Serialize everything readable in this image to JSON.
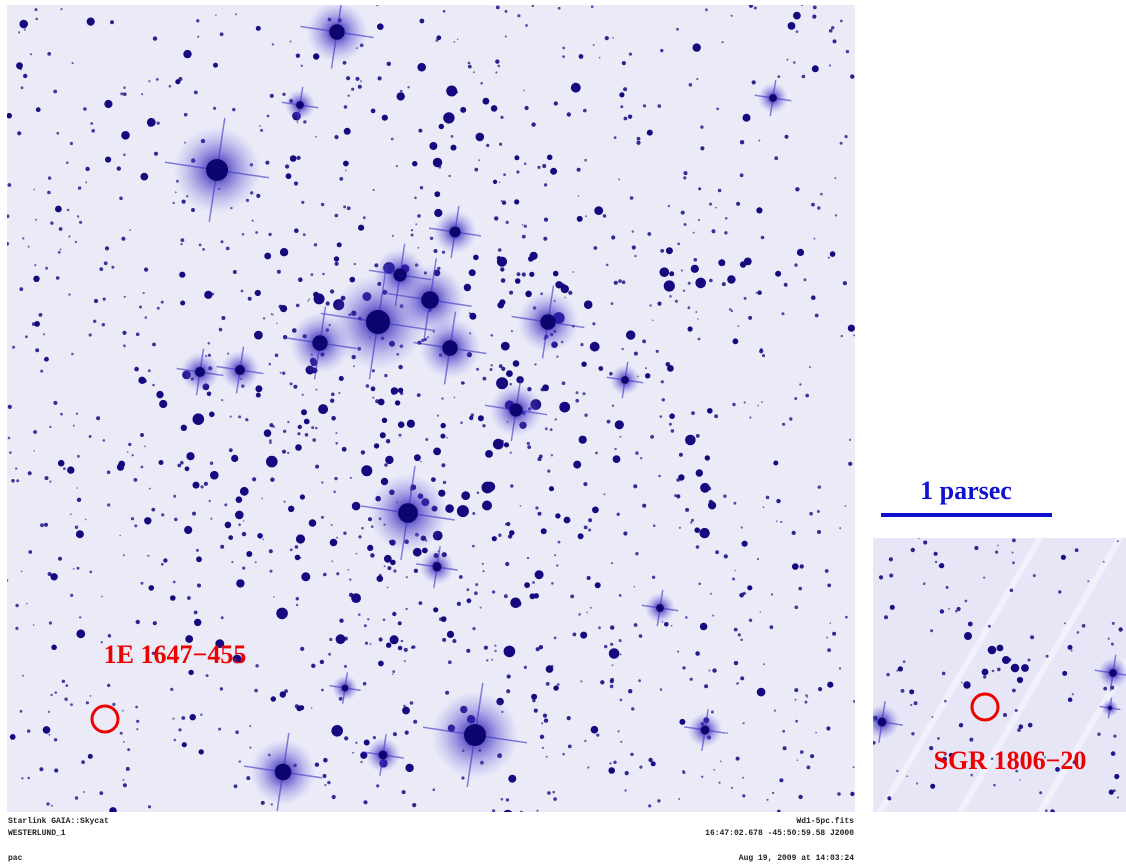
{
  "annotations": {
    "main_source": "1E 1647−455",
    "compare_source": "SGR 1806−20",
    "scale_bar": "1 parsec"
  },
  "footer": {
    "software": "Starlink GAIA::Skycat",
    "object": "WESTERLUND_1",
    "file": "Wd1-5pc.fits",
    "coords": "16:47:02.678 -45:50:59.58 J2000",
    "user": "pac",
    "date": "Aug 19, 2009 at 14:03:24"
  }
}
